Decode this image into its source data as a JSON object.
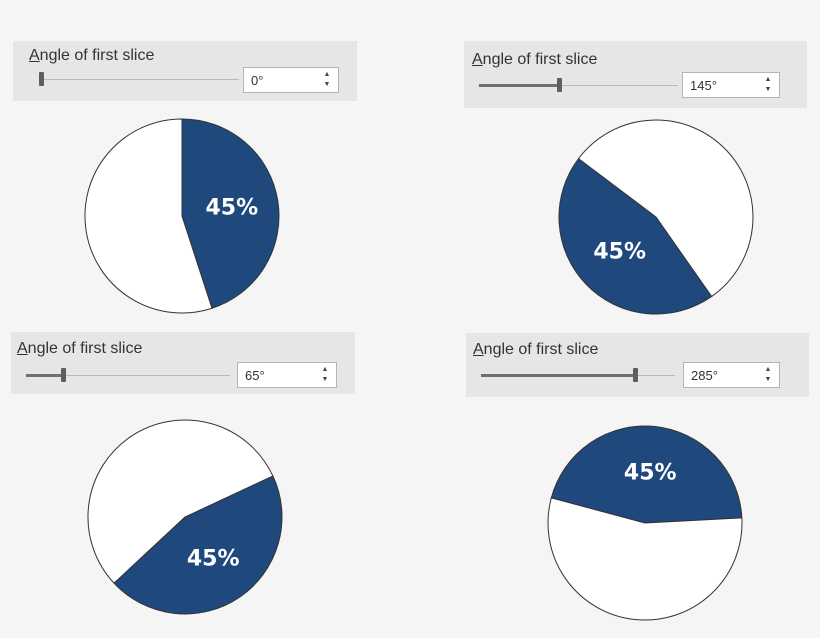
{
  "colors": {
    "slice": "#1f497d",
    "rest": "#ffffff",
    "outline": "#333333",
    "panel": "#e6e6e6"
  },
  "slider_range": [
    0,
    360
  ],
  "panels": [
    {
      "label_mnemonic": "A",
      "label_rest": "ngle of first slice",
      "value": 0,
      "value_text": "0°",
      "slice_percent": 45,
      "slice_label": "45%"
    },
    {
      "label_mnemonic": "A",
      "label_rest": "ngle of first slice",
      "value": 145,
      "value_text": "145°",
      "slice_percent": 45,
      "slice_label": "45%"
    },
    {
      "label_mnemonic": "A",
      "label_rest": "ngle of first slice",
      "value": 65,
      "value_text": "65°",
      "slice_percent": 45,
      "slice_label": "45%"
    },
    {
      "label_mnemonic": "A",
      "label_rest": "ngle of first slice",
      "value": 285,
      "value_text": "285°",
      "slice_percent": 45,
      "slice_label": "45%"
    }
  ],
  "chart_data": [
    {
      "type": "pie",
      "first_slice_angle": 0,
      "slices": [
        {
          "value": 45,
          "label": "45%"
        },
        {
          "value": 55,
          "label": ""
        }
      ]
    },
    {
      "type": "pie",
      "first_slice_angle": 145,
      "slices": [
        {
          "value": 45,
          "label": "45%"
        },
        {
          "value": 55,
          "label": ""
        }
      ]
    },
    {
      "type": "pie",
      "first_slice_angle": 65,
      "slices": [
        {
          "value": 45,
          "label": "45%"
        },
        {
          "value": 55,
          "label": ""
        }
      ]
    },
    {
      "type": "pie",
      "first_slice_angle": 285,
      "slices": [
        {
          "value": 45,
          "label": "45%"
        },
        {
          "value": 55,
          "label": ""
        }
      ]
    }
  ]
}
